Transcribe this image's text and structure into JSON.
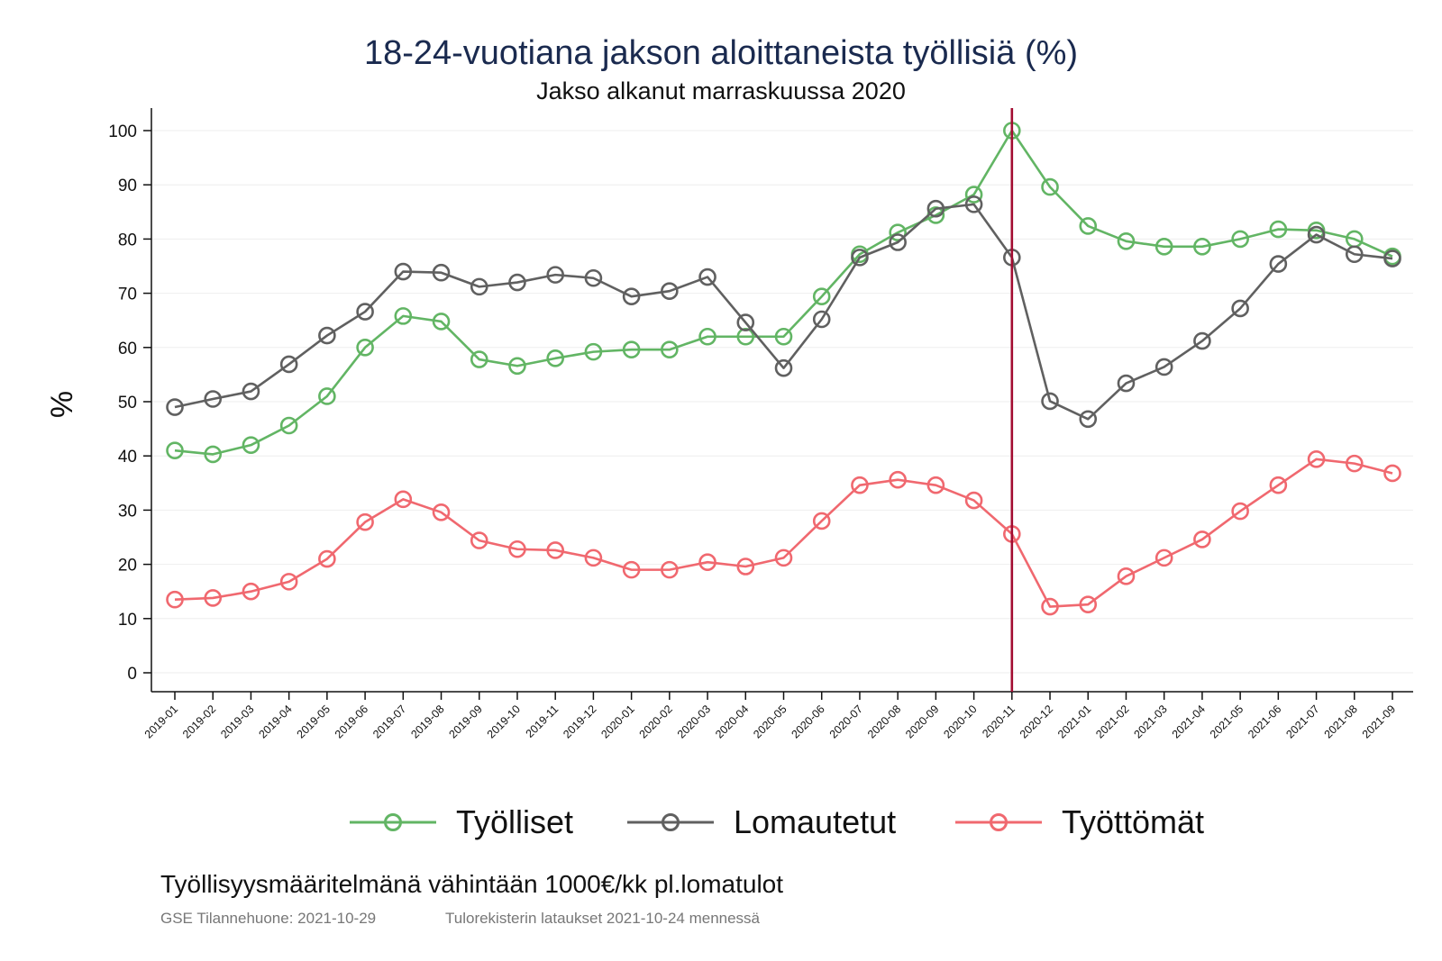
{
  "chart_data": {
    "type": "line",
    "title": "18-24-vuotiana jakson aloittaneista työllisiä (%)",
    "subtitle": "Jakso alkanut marraskuussa 2020",
    "ylabel": "%",
    "xlabel": "",
    "ylim": [
      0,
      100
    ],
    "yticks": [
      0,
      10,
      20,
      30,
      40,
      50,
      60,
      70,
      80,
      90,
      100
    ],
    "grid": true,
    "legend_position": "bottom",
    "reference_line": {
      "x": "2020-11",
      "color": "#a30d32"
    },
    "categories": [
      "2019-01",
      "2019-02",
      "2019-03",
      "2019-04",
      "2019-05",
      "2019-06",
      "2019-07",
      "2019-08",
      "2019-09",
      "2019-10",
      "2019-11",
      "2019-12",
      "2020-01",
      "2020-02",
      "2020-03",
      "2020-04",
      "2020-05",
      "2020-06",
      "2020-07",
      "2020-08",
      "2020-09",
      "2020-10",
      "2020-11",
      "2020-12",
      "2021-01",
      "2021-02",
      "2021-03",
      "2021-04",
      "2021-05",
      "2021-06",
      "2021-07",
      "2021-08",
      "2021-09"
    ],
    "series": [
      {
        "name": "Työlliset",
        "color": "#62b564",
        "values": [
          41,
          40.3,
          42,
          45.6,
          51,
          60,
          65.8,
          64.8,
          57.8,
          56.6,
          58,
          59.2,
          59.6,
          59.6,
          62,
          62,
          62,
          69.4,
          77.2,
          81.2,
          84.4,
          88.2,
          100,
          89.6,
          82.4,
          79.6,
          78.6,
          78.6,
          80,
          81.8,
          81.6,
          80,
          76.8
        ]
      },
      {
        "name": "Lomautetut",
        "color": "#606060",
        "values": [
          49,
          50.5,
          51.9,
          56.9,
          62.2,
          66.6,
          74,
          73.8,
          71.2,
          72,
          73.4,
          72.8,
          69.4,
          70.4,
          73,
          64.6,
          56.2,
          65.2,
          76.6,
          79.4,
          85.6,
          86.4,
          76.6,
          50.1,
          46.8,
          53.4,
          56.4,
          61.2,
          67.2,
          75.4,
          80.8,
          77.2,
          76.4
        ]
      },
      {
        "name": "Työttömät",
        "color": "#f0686f",
        "values": [
          13.5,
          13.8,
          15,
          16.8,
          21,
          27.8,
          32,
          29.6,
          24.4,
          22.8,
          22.6,
          21.2,
          19,
          19,
          20.4,
          19.6,
          21.2,
          28,
          34.6,
          35.6,
          34.6,
          31.8,
          25.6,
          12.2,
          12.6,
          17.8,
          21.2,
          24.6,
          29.8,
          34.6,
          39.4,
          38.6,
          36.8
        ]
      }
    ]
  },
  "note": "Työllisyysmääritelmänä vähintään 1000€/kk pl.lomatulot",
  "footer": {
    "left": "GSE Tilannehuone: 2021-10-29",
    "right": "Tulorekisterin lataukset 2021-10-24 mennessä"
  }
}
